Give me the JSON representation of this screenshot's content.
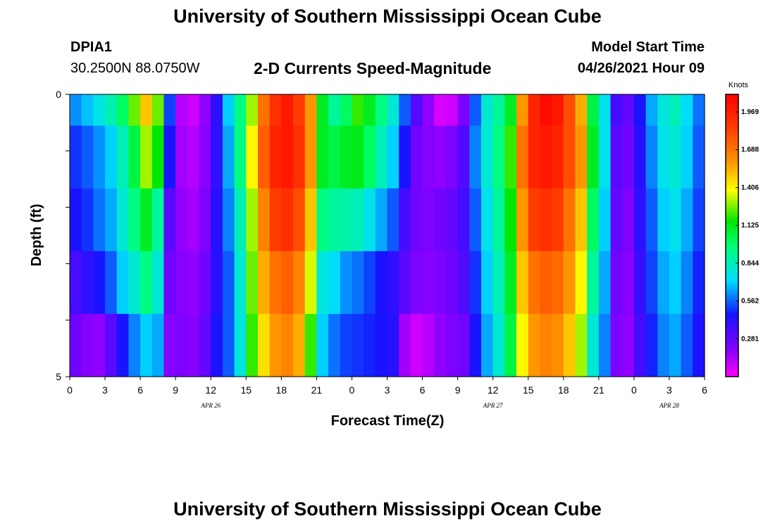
{
  "header": {
    "title": "University of Southern Mississippi Ocean Cube",
    "station_id": "DPIA1",
    "station_coords": "30.2500N  88.0750W",
    "product": "2-D Currents Speed-Magnitude",
    "model_label": "Model Start Time",
    "model_time": "04/26/2021 Hour 09"
  },
  "footer": {
    "title": "University of Southern Mississippi Ocean Cube"
  },
  "chart_data": {
    "type": "heatmap",
    "title": "2-D Currents Speed-Magnitude",
    "xlabel": "Forecast Time(Z)",
    "ylabel": "Depth (ft)",
    "x_tick_labels": [
      "0",
      "3",
      "6",
      "9",
      "12",
      "15",
      "18",
      "21",
      "0",
      "3",
      "6",
      "9",
      "12",
      "15",
      "18",
      "21",
      "0",
      "3",
      "6"
    ],
    "day_labels": [
      "APR 26",
      "APR 27",
      "APR 28"
    ],
    "day_label_positions_hours": [
      12,
      36,
      51
    ],
    "xlim_hours": [
      0,
      54
    ],
    "y_tick_labels": [
      "0",
      "5"
    ],
    "ylim": [
      0,
      5
    ],
    "colorbar": {
      "unit": "Knots",
      "labels": [
        "1.969",
        "1.688",
        "1.406",
        "1.125",
        "0.844",
        "0.562",
        "0.281"
      ],
      "range": [
        0.0,
        2.1
      ]
    },
    "hours": [
      0,
      1,
      2,
      3,
      4,
      5,
      6,
      7,
      8,
      9,
      10,
      11,
      12,
      13,
      14,
      15,
      16,
      17,
      18,
      19,
      20,
      21,
      22,
      23,
      24,
      25,
      26,
      27,
      28,
      29,
      30,
      31,
      32,
      33,
      34,
      35,
      36,
      37,
      38,
      39,
      40,
      41,
      42,
      43,
      44,
      45,
      46,
      47,
      48,
      49,
      50,
      51,
      52,
      53,
      54
    ],
    "depth_layers": [
      "layer 1",
      "layer 2",
      "layer 3",
      "layer 4",
      "layer 5"
    ],
    "speed_knots": [
      [
        0.62,
        0.68,
        0.76,
        0.86,
        1.0,
        1.25,
        1.5,
        1.25,
        0.52,
        0.12,
        0.08,
        0.18,
        0.4,
        0.7,
        0.95,
        1.3,
        1.7,
        1.9,
        2.0,
        1.85,
        1.6,
        1.1,
        0.9,
        1.0,
        1.2,
        1.1,
        0.95,
        0.8,
        0.55,
        0.32,
        0.18,
        0.06,
        0.08,
        0.22,
        0.55,
        0.8,
        0.9,
        1.1,
        1.6,
        1.95,
        2.05,
        2.0,
        1.8,
        1.55,
        1.05,
        0.75,
        0.35,
        0.28,
        0.45,
        0.65,
        0.78,
        0.85,
        0.72,
        0.58,
        0.35
      ],
      [
        0.5,
        0.55,
        0.62,
        0.7,
        0.85,
        1.05,
        1.3,
        1.15,
        0.45,
        0.15,
        0.12,
        0.2,
        0.4,
        0.65,
        0.95,
        1.4,
        1.75,
        1.95,
        2.0,
        1.9,
        1.6,
        1.1,
        1.05,
        1.1,
        1.12,
        1.0,
        0.85,
        0.7,
        0.45,
        0.25,
        0.2,
        0.18,
        0.22,
        0.32,
        0.6,
        0.8,
        0.95,
        1.2,
        1.7,
        1.95,
        2.0,
        1.95,
        1.8,
        1.6,
        1.1,
        0.75,
        0.3,
        0.25,
        0.42,
        0.6,
        0.75,
        0.8,
        0.7,
        0.55,
        0.32
      ],
      [
        0.45,
        0.5,
        0.58,
        0.65,
        0.8,
        0.95,
        1.1,
        0.9,
        0.3,
        0.18,
        0.15,
        0.22,
        0.42,
        0.6,
        0.85,
        1.3,
        1.65,
        1.85,
        1.9,
        1.8,
        1.5,
        0.95,
        0.9,
        0.88,
        0.85,
        0.75,
        0.65,
        0.55,
        0.35,
        0.25,
        0.22,
        0.25,
        0.28,
        0.35,
        0.55,
        0.75,
        0.9,
        1.15,
        1.6,
        1.85,
        1.9,
        1.85,
        1.7,
        1.5,
        1.0,
        0.7,
        0.28,
        0.22,
        0.4,
        0.55,
        0.7,
        0.75,
        0.65,
        0.52,
        0.3
      ],
      [
        0.35,
        0.4,
        0.45,
        0.55,
        0.7,
        0.8,
        0.95,
        0.8,
        0.25,
        0.2,
        0.18,
        0.25,
        0.42,
        0.55,
        0.8,
        1.25,
        1.55,
        1.7,
        1.75,
        1.65,
        1.35,
        0.78,
        0.72,
        0.62,
        0.58,
        0.52,
        0.45,
        0.4,
        0.3,
        0.22,
        0.2,
        0.22,
        0.25,
        0.32,
        0.5,
        0.7,
        0.85,
        1.1,
        1.5,
        1.7,
        1.75,
        1.72,
        1.6,
        1.4,
        0.9,
        0.65,
        0.25,
        0.2,
        0.38,
        0.52,
        0.65,
        0.7,
        0.6,
        0.48,
        0.28
      ],
      [
        0.25,
        0.2,
        0.18,
        0.3,
        0.45,
        0.6,
        0.7,
        0.65,
        0.2,
        0.22,
        0.2,
        0.28,
        0.45,
        0.55,
        0.78,
        1.2,
        1.45,
        1.6,
        1.65,
        1.55,
        1.2,
        0.7,
        0.58,
        0.52,
        0.5,
        0.48,
        0.45,
        0.42,
        0.15,
        0.08,
        0.12,
        0.18,
        0.22,
        0.25,
        0.45,
        0.65,
        0.8,
        1.05,
        1.4,
        1.6,
        1.65,
        1.62,
        1.5,
        1.3,
        0.8,
        0.6,
        0.22,
        0.18,
        0.35,
        0.48,
        0.6,
        0.65,
        0.55,
        0.45,
        0.25
      ]
    ]
  }
}
